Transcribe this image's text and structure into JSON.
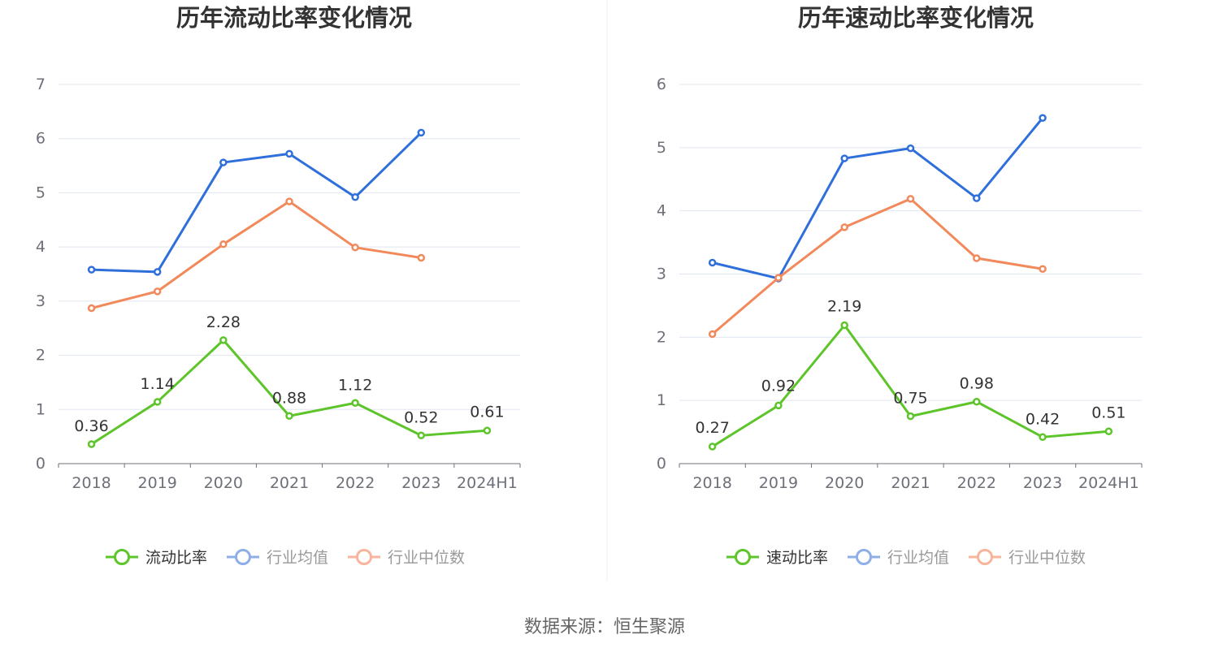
{
  "source_text": "数据来源：恒生聚源",
  "colors": {
    "main": "#5dc429",
    "avg": "#2f6fdb",
    "median": "#f2895b",
    "legend_avg": "#8eaee8",
    "legend_median": "#f8b59b"
  },
  "chart_data": [
    {
      "type": "line",
      "title": "历年流动比率变化情况",
      "categories": [
        "2018",
        "2019",
        "2020",
        "2021",
        "2022",
        "2023",
        "2024H1"
      ],
      "ylim": [
        0,
        7
      ],
      "yticks": [
        0,
        1,
        2,
        3,
        4,
        5,
        6,
        7
      ],
      "grid": true,
      "legend_position": "bottom",
      "series": [
        {
          "name": "流动比率",
          "role": "main",
          "values": [
            0.36,
            1.14,
            2.28,
            0.88,
            1.12,
            0.52,
            0.61
          ],
          "labels": [
            "0.36",
            "1.14",
            "2.28",
            "0.88",
            "1.12",
            "0.52",
            "0.61"
          ]
        },
        {
          "name": "行业均值",
          "role": "avg",
          "values": [
            3.58,
            3.54,
            5.56,
            5.72,
            4.92,
            6.11,
            null
          ]
        },
        {
          "name": "行业中位数",
          "role": "median",
          "values": [
            2.87,
            3.18,
            4.05,
            4.84,
            3.99,
            3.8,
            null
          ]
        }
      ]
    },
    {
      "type": "line",
      "title": "历年速动比率变化情况",
      "categories": [
        "2018",
        "2019",
        "2020",
        "2021",
        "2022",
        "2023",
        "2024H1"
      ],
      "ylim": [
        0,
        6
      ],
      "yticks": [
        0,
        1,
        2,
        3,
        4,
        5,
        6
      ],
      "grid": true,
      "legend_position": "bottom",
      "series": [
        {
          "name": "速动比率",
          "role": "main",
          "values": [
            0.27,
            0.92,
            2.19,
            0.75,
            0.98,
            0.42,
            0.51
          ],
          "labels": [
            "0.27",
            "0.92",
            "2.19",
            "0.75",
            "0.98",
            "0.42",
            "0.51"
          ]
        },
        {
          "name": "行业均值",
          "role": "avg",
          "values": [
            3.18,
            2.93,
            4.83,
            4.99,
            4.2,
            5.47,
            null
          ]
        },
        {
          "name": "行业中位数",
          "role": "median",
          "values": [
            2.05,
            2.94,
            3.74,
            4.19,
            3.25,
            3.08,
            null
          ]
        }
      ]
    }
  ]
}
